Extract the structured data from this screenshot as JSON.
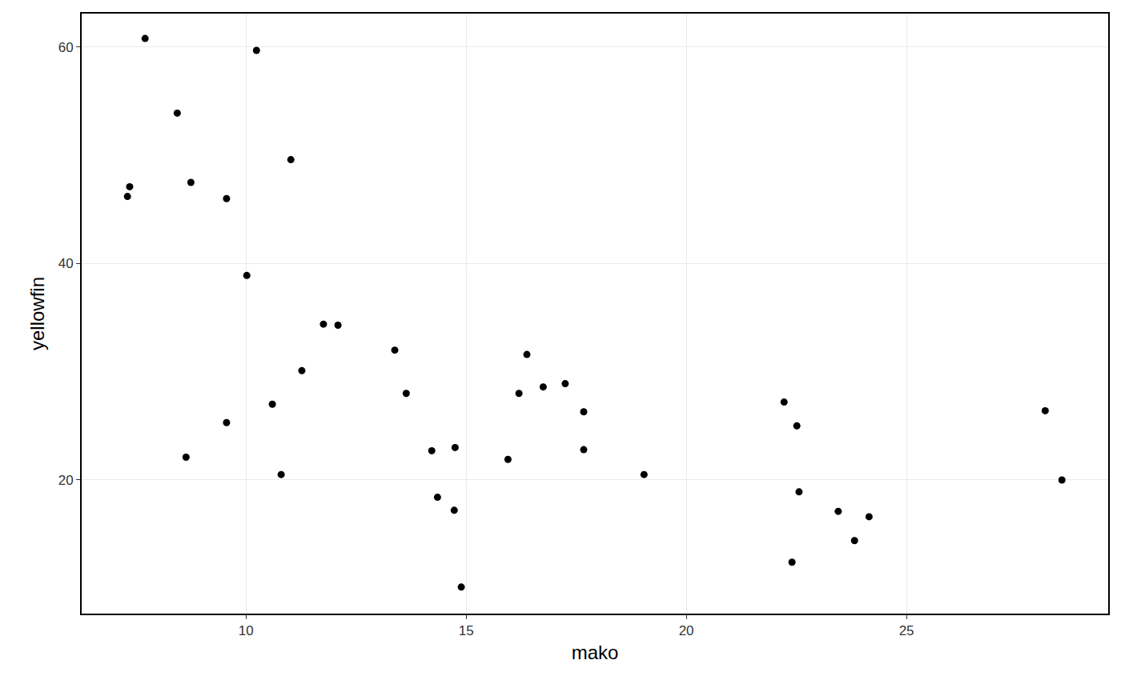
{
  "chart_data": {
    "type": "scatter",
    "x_label": "mako",
    "y_label": "yellowfin",
    "x": [
      7.71,
      10.24,
      8.44,
      7.36,
      7.31,
      8.75,
      9.56,
      11.02,
      10.02,
      11.76,
      12.09,
      11.27,
      13.38,
      13.64,
      16.38,
      10.6,
      9.56,
      8.64,
      10.8,
      14.22,
      14.75,
      14.35,
      14.73,
      14.89,
      15.95,
      16.2,
      16.75,
      17.25,
      17.67,
      17.67,
      19.04,
      22.22,
      22.51,
      22.56,
      22.4,
      23.45,
      23.82,
      24.15,
      28.15,
      28.53
    ],
    "values": [
      60.8,
      59.7,
      53.9,
      47.1,
      46.2,
      47.5,
      46.0,
      49.6,
      38.9,
      34.4,
      34.3,
      30.1,
      32.0,
      28.0,
      31.6,
      27.0,
      25.3,
      22.1,
      20.5,
      22.7,
      23.0,
      18.4,
      17.2,
      10.1,
      21.9,
      28.0,
      28.6,
      28.9,
      26.3,
      22.8,
      20.5,
      27.2,
      25.0,
      18.9,
      12.4,
      17.1,
      14.4,
      16.6,
      26.4,
      20.0
    ],
    "color": "#000000",
    "xlim": [
      6.27,
      29.58
    ],
    "xticks": [
      10,
      15,
      20,
      25
    ],
    "ylim": [
      7.65,
      63.1
    ],
    "yticks": [
      20,
      40,
      60
    ],
    "grid": true
  }
}
